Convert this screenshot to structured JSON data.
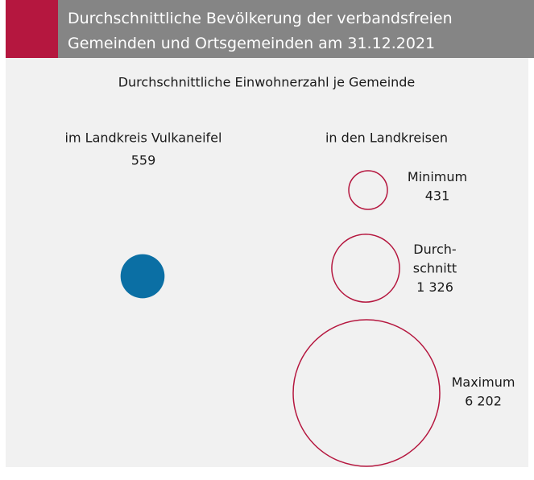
{
  "chart_data": {
    "type": "bubble",
    "title": [
      "Durchschnittliche Bevölkerung der verbandsfreien",
      "Gemeinden und Ortsgemeinden am 31.12.2021"
    ],
    "subtitle": "Durchschnittliche Einwohnerzahl je Gemeinde",
    "series": [
      {
        "name": "im Landkreis Vulkaneifel",
        "color": "#0b6fa4",
        "filled": true,
        "values": [
          559
        ],
        "value_labels": [
          "559"
        ]
      },
      {
        "name": "in den Landkreisen",
        "color": "#b5173f",
        "filled": false,
        "categories": [
          [
            "Minimum"
          ],
          [
            "Durch-",
            "schnitt"
          ],
          [
            "Maximum"
          ]
        ],
        "values": [
          431,
          1326,
          6202
        ],
        "value_labels": [
          "431",
          "1 326",
          "6 202"
        ]
      }
    ]
  }
}
